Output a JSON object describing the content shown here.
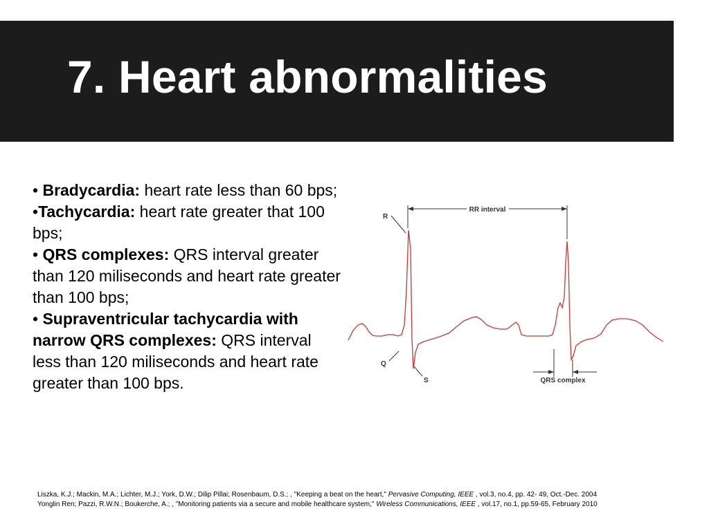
{
  "slide": {
    "title": "7. Heart abnormalities"
  },
  "bullets": [
    {
      "prefix": "• ",
      "term": "Bradycardia:",
      "text": " heart rate less than 60 bps;"
    },
    {
      "prefix": "•",
      "term": "Tachycardia:",
      "text": " heart rate greater that 100 bps;"
    },
    {
      "prefix": "• ",
      "term": "QRS complexes:",
      "text": " QRS interval greater than 120 miliseconds and heart rate greater than 100 bps;"
    },
    {
      "prefix": "• ",
      "term": "Supraventricular tachycardia with narrow QRS complexes:",
      "text": " QRS interval less than 120 miliseconds and heart rate greater than 100 bps."
    }
  ],
  "ecg": {
    "label_r": "R",
    "label_q": "Q",
    "label_s": "S",
    "label_rr": "RR interval",
    "label_qrs": "QRS complex",
    "trace_color": "#d9312b",
    "annotation_color": "#333333"
  },
  "references": [
    {
      "before": "Liszka, K.J.; Mackin, M.A.; Lichter, M.J.; York, D.W.; Dilip Pillai; Rosenbaum, D.S.; , \"Keeping a beat on the heart,\" ",
      "journal": "Pervasive Computing, IEEE",
      "after": " , vol.3, no.4, pp. 42- 49, Oct.-Dec. 2004"
    },
    {
      "before": "Yonglin Ren; Pazzi, R.W.N.; Boukerche, A.; , \"Monitoring patients via a secure and mobile healthcare system,\" ",
      "journal": "Wireless Communications, IEEE",
      "after": " , vol.17, no.1, pp.59-65, February 2010"
    }
  ]
}
